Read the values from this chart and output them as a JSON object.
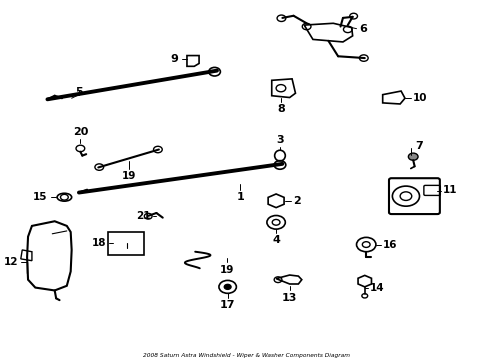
{
  "bg_color": "#ffffff",
  "line_color": "#000000",
  "text_color": "#000000",
  "title": "2008 Saturn Astra Windshield - Wiper & Washer Components Diagram"
}
